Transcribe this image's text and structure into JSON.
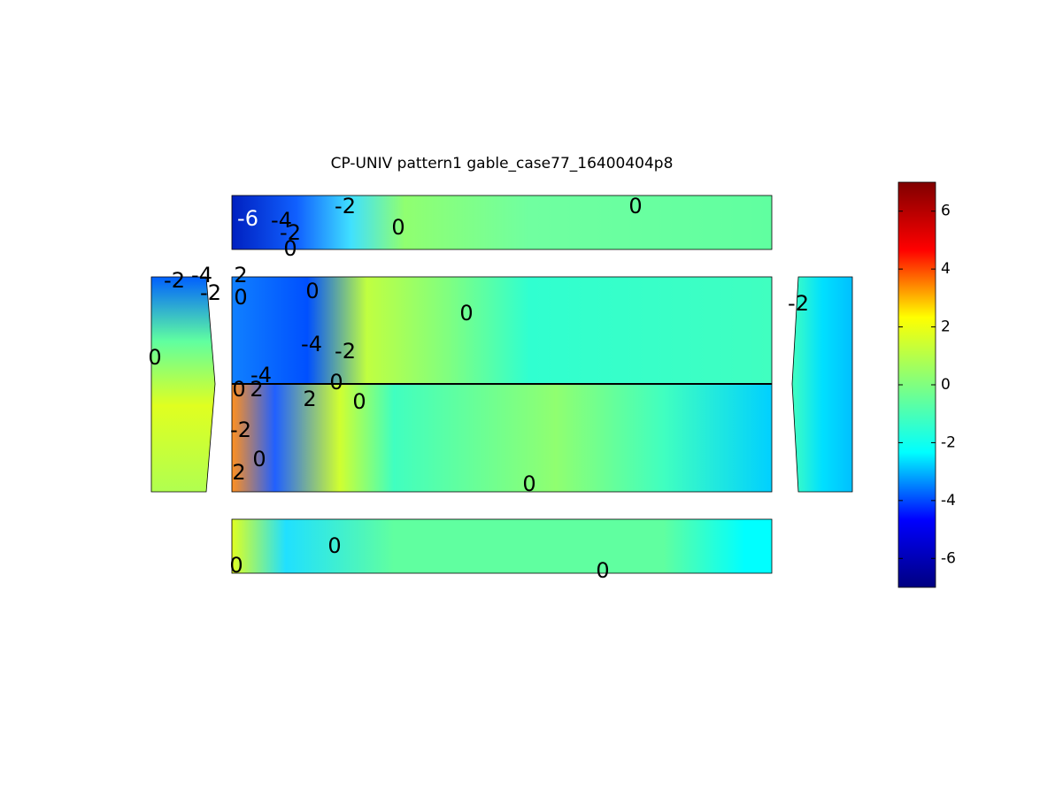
{
  "chart_data": {
    "type": "contour",
    "title": "CP-UNIV pattern1 gable_case77_16400404p8",
    "contour_labels": [
      -6,
      -4,
      -2,
      0,
      -2,
      0,
      0,
      -2,
      -4,
      -2,
      0,
      2,
      0,
      0,
      0,
      -4,
      -2,
      -4,
      0,
      0,
      2,
      2,
      0,
      -2,
      0,
      2,
      0,
      -2,
      0,
      0,
      0
    ],
    "colorbar": {
      "colormap": "jet",
      "ylim": [
        -7,
        7
      ],
      "yticks": [
        -6,
        -4,
        -2,
        0,
        2,
        4,
        6
      ]
    }
  }
}
